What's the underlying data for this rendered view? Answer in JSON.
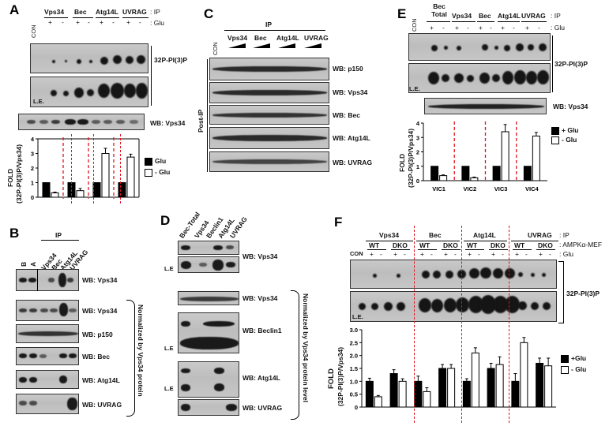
{
  "panels": {
    "A": {
      "label": "A",
      "ip_label": ": IP",
      "glu_label": ": Glu",
      "con_label": "CON",
      "groups": [
        "Vps34",
        "Bec",
        "Atg14L",
        "UVRAG"
      ],
      "glu_signs": [
        "+",
        "-",
        "+",
        "-",
        "+",
        "-",
        "+",
        "-"
      ],
      "le_label": "L.E.",
      "pi3p_label": "32P-PI(3)P",
      "wb_vps34": "WB: Vps34",
      "chart_ylabel_1": "FOLD",
      "chart_ylabel_2": "(32P-PI(3)P/Vps34)",
      "legend": [
        "Glu",
        "- Glu"
      ]
    },
    "B": {
      "label": "B",
      "ip_label": "IP",
      "lanes": [
        "B",
        "A",
        "Vps34",
        "Bec",
        "Atg14L",
        "UVRAG"
      ],
      "blots": [
        "WB: Vps34",
        "WB: Vps34",
        "WB: p150",
        "WB: Bec",
        "WB: Atg14L",
        "WB: UVRAG"
      ],
      "bracket_text": "Normalized by Vps34 protein"
    },
    "C": {
      "label": "C",
      "ip_label": "IP",
      "con_label": "CON",
      "groups": [
        "Vps34",
        "Bec",
        "Atg14L",
        "UVRAG"
      ],
      "side_label": "Post-IP",
      "blots": [
        "WB: p150",
        "WB: Vps34",
        "WB: Bec",
        "WB: Atg14L",
        "WB: UVRAG"
      ]
    },
    "D": {
      "label": "D",
      "lanes": [
        "Bec-Total",
        "Vps34",
        "Beclin1",
        "Atg14L",
        "UVRAG"
      ],
      "blots": [
        "WB: Vps34",
        "WB: Vps34",
        "WB: Beclin1",
        "WB: Atg14L",
        "WB: UVRAG"
      ],
      "le_label": "L.E",
      "bracket_text": "Normalized by Vps34 protein level"
    },
    "E": {
      "label": "E",
      "con_label": "CON",
      "groups": [
        "Bec Total",
        "Vps34",
        "Bec",
        "Atg14L",
        "UVRAG"
      ],
      "ip_label": ": IP",
      "glu_label": ": Glu",
      "glu_signs": [
        "+",
        "-",
        "+",
        "-",
        "+",
        "-",
        "+",
        "-",
        "+",
        "-"
      ],
      "le_label": "L.E.",
      "pi3p_label": "32P-PI(3)P",
      "wb_vps34": "WB: Vps34",
      "chart_ylabel_1": "FOLD",
      "chart_ylabel_2": "(32P-PI(3)P/Vps34)",
      "legend": [
        "+ Glu",
        "- Glu"
      ]
    },
    "F": {
      "label": "F",
      "groups": [
        "Vps34",
        "Bec",
        "Atg14L",
        "UVRAG"
      ],
      "ip_label": ": IP",
      "mef_label": ": AMPKα-MEF",
      "glu_label": ": Glu",
      "con_label": "CON",
      "genotypes": [
        "WT",
        "DKO"
      ],
      "le_label": "L.E.",
      "pi3p_label": "32P-PI(3)P",
      "chart_ylabel_1": "FOLD",
      "chart_ylabel_2": "(32P-PI(3)P/Vps34)",
      "legend": [
        "+Glu",
        "- Glu"
      ]
    }
  },
  "chart_data": [
    {
      "panel": "A",
      "type": "bar",
      "categories": [
        "Vps34",
        "Bec",
        "Atg14L",
        "UVRAG"
      ],
      "ylim": [
        0,
        4
      ],
      "yticks": [
        "0",
        "1",
        "2",
        "3",
        "4"
      ],
      "series": [
        {
          "name": "Glu",
          "color": "#000000",
          "values": [
            1,
            1,
            1,
            1
          ]
        },
        {
          "name": "- Glu",
          "color": "#ffffff",
          "values": [
            0.3,
            0.45,
            3.0,
            2.75
          ]
        }
      ],
      "grid": false
    },
    {
      "panel": "E",
      "type": "bar",
      "categories": [
        "VIC1",
        "VIC2",
        "VIC3",
        "VIC4"
      ],
      "ylim": [
        0,
        4
      ],
      "yticks": [
        "0",
        "1",
        "2",
        "3",
        "4"
      ],
      "series": [
        {
          "name": "+ Glu",
          "color": "#000000",
          "values": [
            1,
            1,
            1,
            1
          ]
        },
        {
          "name": "- Glu",
          "color": "#ffffff",
          "values": [
            0.35,
            0.2,
            3.4,
            3.1
          ]
        }
      ],
      "grid": false
    },
    {
      "panel": "F",
      "type": "bar",
      "categories": [
        "Vps34 WT",
        "Vps34 DKO",
        "Bec WT",
        "Bec DKO",
        "Atg14L WT",
        "Atg14L DKO",
        "UVRAG WT",
        "UVRAG DKO"
      ],
      "ylim": [
        0,
        3.0
      ],
      "yticks": [
        "0",
        "0.5",
        "1.0",
        "1.5",
        "2.0",
        "2.5",
        "3.0"
      ],
      "series": [
        {
          "name": "+Glu",
          "color": "#000000",
          "values": [
            1.0,
            1.3,
            1.0,
            1.5,
            1.0,
            1.5,
            1.0,
            1.7
          ]
        },
        {
          "name": "- Glu",
          "color": "#ffffff",
          "values": [
            0.4,
            1.0,
            0.6,
            1.5,
            2.1,
            1.65,
            2.5,
            1.6
          ]
        }
      ],
      "grid": false
    }
  ]
}
